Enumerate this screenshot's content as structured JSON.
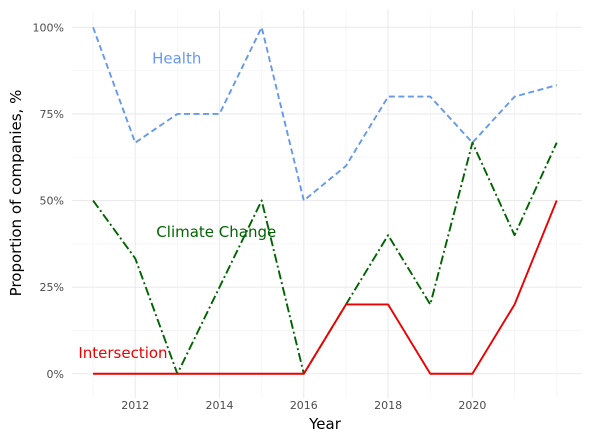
{
  "chart_data": {
    "type": "line",
    "title": "",
    "xlabel": "Year",
    "ylabel": "Proportion of companies, %",
    "x": [
      2011,
      2012,
      2013,
      2014,
      2015,
      2016,
      2017,
      2018,
      2019,
      2020,
      2021,
      2022
    ],
    "xlim": [
      2010.5,
      2022.6
    ],
    "ylim": [
      -0.07,
      1.05
    ],
    "x_ticks": [
      2012,
      2014,
      2016,
      2018,
      2020
    ],
    "x_tick_labels": [
      "2012",
      "2014",
      "2016",
      "2018",
      "2020"
    ],
    "y_ticks": [
      0,
      0.25,
      0.5,
      0.75,
      1.0
    ],
    "y_tick_labels": [
      "0%",
      "25%",
      "50%",
      "75%",
      "100%"
    ],
    "grid": true,
    "legend": "none",
    "series": [
      {
        "name": "Health",
        "color": "#6699ee",
        "dash": "dashed",
        "values": [
          1.0,
          0.667,
          0.75,
          0.75,
          1.0,
          0.5,
          0.6,
          0.8,
          0.8,
          0.667,
          0.8,
          0.833
        ],
        "label_anchor": [
          2012.4,
          0.895
        ]
      },
      {
        "name": "Climate Change",
        "color": "#006400",
        "dash": "dashdot",
        "values": [
          0.5,
          0.333,
          0.0,
          0.25,
          0.5,
          0.0,
          0.2,
          0.4,
          0.2,
          0.667,
          0.4,
          0.667
        ],
        "label_anchor": [
          2012.5,
          0.395
        ]
      },
      {
        "name": "Intersection",
        "color": "#ee0000",
        "dash": "solid",
        "values": [
          0.0,
          0.0,
          0.0,
          0.0,
          0.0,
          0.0,
          0.2,
          0.2,
          0.0,
          0.0,
          0.2,
          0.5
        ],
        "label_anchor": [
          2010.65,
          0.045
        ]
      }
    ]
  }
}
